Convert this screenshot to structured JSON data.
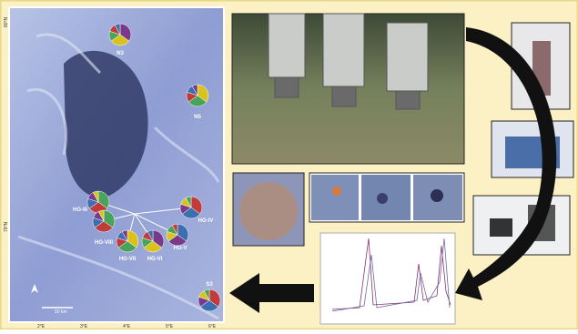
{
  "map": {
    "stations": [
      "N3",
      "N5",
      "HG-III",
      "HG-IV",
      "HG-V",
      "HG-VI",
      "HG-VII",
      "HG-VIII",
      "S3"
    ],
    "lat_labels": [
      "80°N",
      "79°N"
    ],
    "lon_labels": [
      "2°E",
      "3°E",
      "4°E",
      "5°E",
      "6°E"
    ],
    "scale_label": "50 km"
  }
}
